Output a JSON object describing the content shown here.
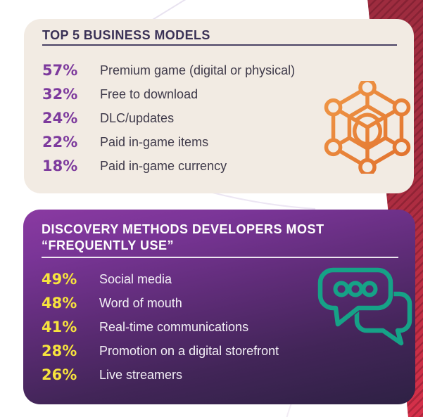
{
  "card_business": {
    "title": "TOP 5 BUSINESS MODELS",
    "icon": "cube-network-icon",
    "accent_color": "#7d3a9d",
    "background_color": "#f2ebe3",
    "items": [
      {
        "pct": "57%",
        "label": "Premium game (digital or physical)"
      },
      {
        "pct": "32%",
        "label": "Free to download"
      },
      {
        "pct": "24%",
        "label": "DLC/updates"
      },
      {
        "pct": "22%",
        "label": "Paid in-game items"
      },
      {
        "pct": "18%",
        "label": "Paid in-game currency"
      }
    ]
  },
  "card_discovery": {
    "title_line1": "DISCOVERY METHODS DEVELOPERS MOST",
    "title_line2": "“FREQUENTLY USE”",
    "icon": "chat-bubbles-icon",
    "accent_color": "#f7e33d",
    "background_gradient": [
      "#8a3aa2",
      "#2e2144"
    ],
    "items": [
      {
        "pct": "49%",
        "label": "Social media"
      },
      {
        "pct": "48%",
        "label": "Word of mouth"
      },
      {
        "pct": "41%",
        "label": "Real-time communications"
      },
      {
        "pct": "28%",
        "label": "Promotion on a digital storefront"
      },
      {
        "pct": "26%",
        "label": "Live streamers"
      }
    ]
  },
  "decor": {
    "ribbon_top_color": "#9e2c3f",
    "ribbon_bottom_color": "#d6304a",
    "orange_icon_color": "#e8823a",
    "teal_icon_color": "#16a287"
  },
  "chart_data": [
    {
      "type": "table",
      "title": "TOP 5 BUSINESS MODELS",
      "categories": [
        "Premium game (digital or physical)",
        "Free to download",
        "DLC/updates",
        "Paid in-game items",
        "Paid in-game currency"
      ],
      "values": [
        57,
        32,
        24,
        22,
        18
      ],
      "unit": "%"
    },
    {
      "type": "table",
      "title": "DISCOVERY METHODS DEVELOPERS MOST “FREQUENTLY USE”",
      "categories": [
        "Social media",
        "Word of mouth",
        "Real-time communications",
        "Promotion on a digital storefront",
        "Live streamers"
      ],
      "values": [
        49,
        48,
        41,
        28,
        26
      ],
      "unit": "%"
    }
  ]
}
